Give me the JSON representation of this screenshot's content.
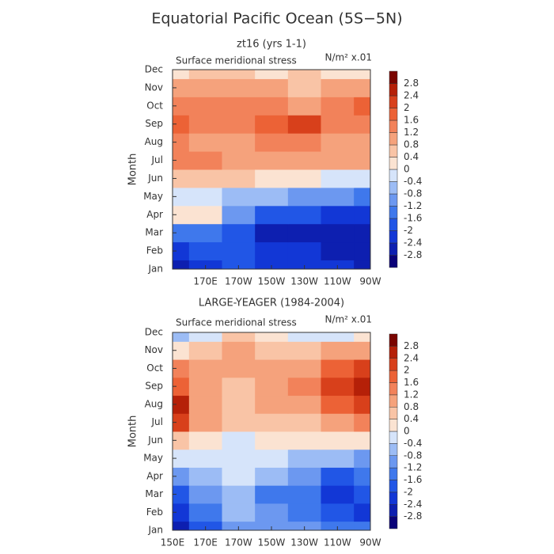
{
  "title": "Equatorial Pacific Ocean (5S−5N)",
  "chart_data": [
    {
      "type": "heatmap",
      "title": "zt16 (yrs 1-1)",
      "subtitle": "Surface meridional stress",
      "units": "N/m² x.01",
      "y_label": "Month",
      "categories": [
        "Jan",
        "Feb",
        "Mar",
        "Apr",
        "May",
        "Jun",
        "Jul",
        "Aug",
        "Sep",
        "Oct",
        "Nov",
        "Dec"
      ],
      "x": [
        150,
        170,
        190,
        210,
        230,
        250,
        270
      ],
      "xlim": [
        150,
        270
      ],
      "xticks": [
        {
          "value": 170,
          "label": "170E"
        },
        {
          "value": 190,
          "label": "170W"
        },
        {
          "value": 210,
          "label": "150W"
        },
        {
          "value": 230,
          "label": "130W"
        },
        {
          "value": 250,
          "label": "110W"
        },
        {
          "value": 270,
          "label": "90W"
        }
      ],
      "values": [
        [
          -2.8,
          -2.2,
          -2.0,
          -2.2,
          -2.4,
          -2.4,
          -2.6
        ],
        [
          -2.4,
          -2.0,
          -2.0,
          -2.2,
          -2.4,
          -2.6,
          -2.8
        ],
        [
          -1.6,
          -1.4,
          -2.0,
          -2.6,
          -2.6,
          -2.8,
          -2.8
        ],
        [
          0.2,
          0.2,
          -1.2,
          -1.8,
          -2.0,
          -2.2,
          -2.2
        ],
        [
          -0.4,
          -0.4,
          -0.6,
          -0.8,
          -1.0,
          -1.2,
          -1.4
        ],
        [
          0.6,
          0.4,
          0.6,
          0.3,
          0.2,
          -0.2,
          -0.4
        ],
        [
          1.4,
          1.2,
          1.0,
          1.0,
          0.8,
          0.8,
          1.0
        ],
        [
          1.4,
          1.0,
          1.0,
          1.2,
          1.2,
          1.0,
          1.0
        ],
        [
          1.8,
          1.2,
          1.2,
          1.6,
          2.0,
          1.4,
          1.2
        ],
        [
          1.4,
          1.2,
          1.2,
          1.2,
          1.0,
          1.2,
          1.8
        ],
        [
          0.8,
          1.0,
          1.0,
          0.8,
          0.6,
          0.8,
          1.0
        ],
        [
          0.2,
          0.4,
          0.4,
          0.3,
          0.4,
          0.3,
          0.3
        ]
      ],
      "levels": [
        -2.8,
        -2.4,
        -2,
        -1.6,
        -1.2,
        -0.8,
        -0.4,
        0,
        0.4,
        0.8,
        1.2,
        1.6,
        2,
        2.4,
        2.8
      ],
      "colors": [
        "#0a0278",
        "#0d1fb0",
        "#1237d6",
        "#2156e6",
        "#3f78ec",
        "#6c98f0",
        "#9cbcf5",
        "#d6e4fa",
        "#fbe3d2",
        "#f9c4a6",
        "#f5a27c",
        "#f2825a",
        "#ec6236",
        "#d8401b",
        "#b52008",
        "#7a0500"
      ]
    },
    {
      "type": "heatmap",
      "title": "LARGE-YEAGER (1984-2004)",
      "subtitle": "Surface meridional stress",
      "units": "N/m² x.01",
      "y_label": "Month",
      "categories": [
        "Jan",
        "Feb",
        "Mar",
        "Apr",
        "May",
        "Jun",
        "Jul",
        "Aug",
        "Sep",
        "Oct",
        "Nov",
        "Dec"
      ],
      "x": [
        150,
        170,
        190,
        210,
        230,
        250,
        270
      ],
      "xlim": [
        150,
        270
      ],
      "xticks": [
        {
          "value": 150,
          "label": "150E"
        },
        {
          "value": 170,
          "label": "170E"
        },
        {
          "value": 190,
          "label": "170W"
        },
        {
          "value": 210,
          "label": "150W"
        },
        {
          "value": 230,
          "label": "130W"
        },
        {
          "value": 250,
          "label": "110W"
        },
        {
          "value": 270,
          "label": "90W"
        }
      ],
      "values": [
        [
          -2.6,
          -1.8,
          -1.2,
          -1.0,
          -1.2,
          -1.4,
          -1.6
        ],
        [
          -2.4,
          -1.6,
          -0.8,
          -1.2,
          -1.6,
          -2.0,
          -2.2
        ],
        [
          -1.8,
          -1.2,
          -0.6,
          -1.4,
          -1.6,
          -2.2,
          -2.0
        ],
        [
          -1.2,
          -0.6,
          -0.4,
          -0.8,
          -1.2,
          -1.8,
          -1.6
        ],
        [
          -0.4,
          -0.2,
          -0.2,
          -0.4,
          -0.6,
          -0.8,
          -1.0
        ],
        [
          0.6,
          0.2,
          -0.2,
          0.2,
          0.2,
          0.2,
          0.2
        ],
        [
          2.0,
          0.8,
          0.4,
          0.6,
          0.6,
          0.8,
          1.2
        ],
        [
          2.4,
          1.0,
          0.6,
          0.8,
          1.0,
          1.6,
          2.0
        ],
        [
          1.8,
          1.0,
          0.6,
          1.0,
          1.2,
          2.0,
          2.6
        ],
        [
          1.2,
          0.8,
          1.0,
          0.8,
          0.8,
          1.6,
          2.0
        ],
        [
          0.2,
          0.4,
          0.8,
          0.6,
          0.4,
          0.8,
          1.0
        ],
        [
          -0.6,
          -0.2,
          0.4,
          0.2,
          -0.4,
          -0.2,
          0.2
        ]
      ],
      "levels": [
        -2.8,
        -2.4,
        -2,
        -1.6,
        -1.2,
        -0.8,
        -0.4,
        0,
        0.4,
        0.8,
        1.2,
        1.6,
        2,
        2.4,
        2.8
      ],
      "colors": [
        "#0a0278",
        "#0d1fb0",
        "#1237d6",
        "#2156e6",
        "#3f78ec",
        "#6c98f0",
        "#9cbcf5",
        "#d6e4fa",
        "#fbe3d2",
        "#f9c4a6",
        "#f5a27c",
        "#f2825a",
        "#ec6236",
        "#d8401b",
        "#b52008",
        "#7a0500"
      ]
    }
  ]
}
